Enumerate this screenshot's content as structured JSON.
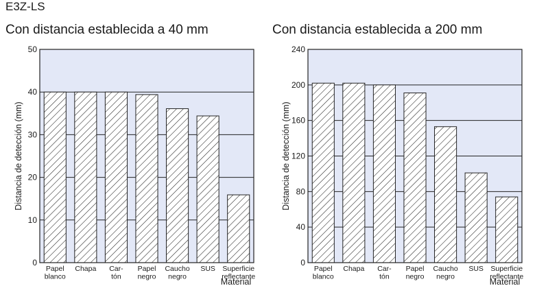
{
  "header": {
    "model": "E3Z-LS"
  },
  "chart_data": [
    {
      "type": "bar",
      "title": "Con distancia establecida a 40 mm",
      "ylabel": "Distancia de detección (mm)",
      "xlabel": "Material",
      "ylim": [
        0,
        50
      ],
      "yticks": [
        0,
        10,
        20,
        30,
        40,
        50
      ],
      "grid": true,
      "categories": [
        [
          "Papel",
          "blanco"
        ],
        [
          "Chapa"
        ],
        [
          "Car-",
          "tón"
        ],
        [
          "Papel",
          "negro"
        ],
        [
          "Caucho",
          "negro"
        ],
        [
          "SUS"
        ],
        [
          "Superficie",
          "reflectante"
        ]
      ],
      "values": [
        40,
        40,
        40,
        39.4,
        36.1,
        34.4,
        15.9
      ]
    },
    {
      "type": "bar",
      "title": "Con distancia establecida a 200 mm",
      "ylabel": "Distancia de detección (mm)",
      "xlabel": "Material",
      "ylim": [
        0,
        240
      ],
      "yticks": [
        0,
        40,
        80,
        120,
        160,
        200,
        240
      ],
      "grid": true,
      "categories": [
        [
          "Papel",
          "blanco"
        ],
        [
          "Chapa"
        ],
        [
          "Car-",
          "tón"
        ],
        [
          "Papel",
          "negro"
        ],
        [
          "Caucho",
          "negro"
        ],
        [
          "SUS"
        ],
        [
          "Superficie",
          "reflectante"
        ]
      ],
      "values": [
        202,
        202,
        200,
        191,
        153,
        101,
        74
      ]
    }
  ]
}
